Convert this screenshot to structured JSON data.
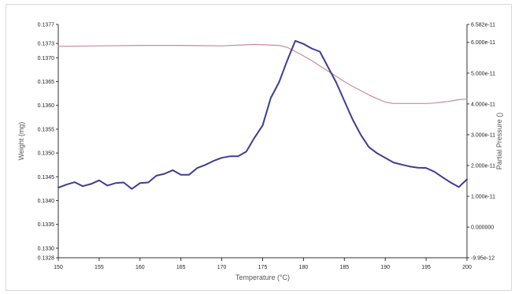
{
  "chart_data": {
    "type": "line",
    "x": {
      "label": "Temperature (°C)",
      "range": [
        150,
        200
      ],
      "ticks": [
        "150",
        "155",
        "160",
        "165",
        "170",
        "175",
        "180",
        "185",
        "190",
        "195",
        "200"
      ]
    },
    "y_left": {
      "label": "Weight (mg)",
      "range": [
        0.1328,
        0.1377
      ],
      "ticks": [
        {
          "value": 0.1377,
          "label": "0.1377"
        },
        {
          "value": 0.1373,
          "label": "0.1373"
        },
        {
          "value": 0.137,
          "label": "0.1370"
        },
        {
          "value": 0.1365,
          "label": "0.1365"
        },
        {
          "value": 0.136,
          "label": "0.1360"
        },
        {
          "value": 0.1355,
          "label": "0.1355"
        },
        {
          "value": 0.135,
          "label": "0.1350"
        },
        {
          "value": 0.1345,
          "label": "0.1345"
        },
        {
          "value": 0.134,
          "label": "0.1340"
        },
        {
          "value": 0.1335,
          "label": "0.1335"
        },
        {
          "value": 0.133,
          "label": "0.1330"
        },
        {
          "value": 0.1328,
          "label": "0.1328"
        }
      ]
    },
    "y_right": {
      "label": "Partial Pressure ()",
      "range": [
        -9.95e-12,
        6.582e-11
      ],
      "ticks": [
        {
          "value": 6.582e-11,
          "label": "6.582e-11"
        },
        {
          "value": 6e-11,
          "label": "6.000e-11"
        },
        {
          "value": 5e-11,
          "label": "5.000e-11"
        },
        {
          "value": 4e-11,
          "label": "4.000e-11"
        },
        {
          "value": 3e-11,
          "label": "3.000e-11"
        },
        {
          "value": 2e-11,
          "label": "2.000e-11"
        },
        {
          "value": 1e-11,
          "label": "1.000e-11"
        },
        {
          "value": 0.0,
          "label": "0.000000"
        },
        {
          "value": -9.95e-12,
          "label": "-9.95e-12"
        }
      ]
    },
    "series": [
      {
        "name": "Weight (mg)",
        "axis": "left",
        "color": "#c98a9a",
        "x": [
          150,
          155,
          160,
          165,
          170,
          174,
          177,
          178,
          179,
          180,
          181,
          182,
          183,
          184,
          185,
          186,
          187,
          188,
          189,
          190,
          191,
          192,
          193,
          194,
          195,
          196,
          197,
          198,
          199,
          200
        ],
        "y": [
          0.13724,
          0.13725,
          0.13726,
          0.13726,
          0.13725,
          0.13728,
          0.13726,
          0.13722,
          0.13713,
          0.13704,
          0.13694,
          0.13683,
          0.13672,
          0.13661,
          0.1365,
          0.1364,
          0.13631,
          0.13622,
          0.13614,
          0.13607,
          0.13604,
          0.13604,
          0.13604,
          0.13604,
          0.13604,
          0.13605,
          0.13607,
          0.13609,
          0.13612,
          0.13613
        ]
      },
      {
        "name": "Partial Pressure ()",
        "axis": "right",
        "color": "#3d3d94",
        "x": [
          150,
          151,
          152,
          153,
          154,
          155,
          156,
          157,
          158,
          159,
          160,
          161,
          162,
          163,
          164,
          165,
          166,
          167,
          168,
          169,
          170,
          171,
          172,
          173,
          174,
          175,
          176,
          177,
          178,
          179,
          180,
          181,
          182,
          183,
          184,
          185,
          186,
          187,
          188,
          189,
          190,
          191,
          192,
          193,
          194,
          195,
          196,
          197,
          198,
          199,
          200
        ],
        "y": [
          1.28e-11,
          1.38e-11,
          1.46e-11,
          1.33e-11,
          1.4e-11,
          1.52e-11,
          1.35e-11,
          1.43e-11,
          1.45e-11,
          1.24e-11,
          1.43e-11,
          1.45e-11,
          1.67e-11,
          1.73e-11,
          1.85e-11,
          1.7e-11,
          1.7e-11,
          1.92e-11,
          2.02e-11,
          2.15e-11,
          2.25e-11,
          2.3e-11,
          2.3e-11,
          2.45e-11,
          2.9e-11,
          3.3e-11,
          4.2e-11,
          4.7e-11,
          5.4e-11,
          6.05e-11,
          5.95e-11,
          5.8e-11,
          5.7e-11,
          5.2e-11,
          4.7e-11,
          4.1e-11,
          3.5e-11,
          3e-11,
          2.6e-11,
          2.4e-11,
          2.25e-11,
          2.1e-11,
          2.03e-11,
          1.97e-11,
          1.93e-11,
          1.92e-11,
          1.8e-11,
          1.62e-11,
          1.45e-11,
          1.3e-11,
          1.55e-11
        ]
      }
    ],
    "grid": false,
    "legend": "none"
  }
}
